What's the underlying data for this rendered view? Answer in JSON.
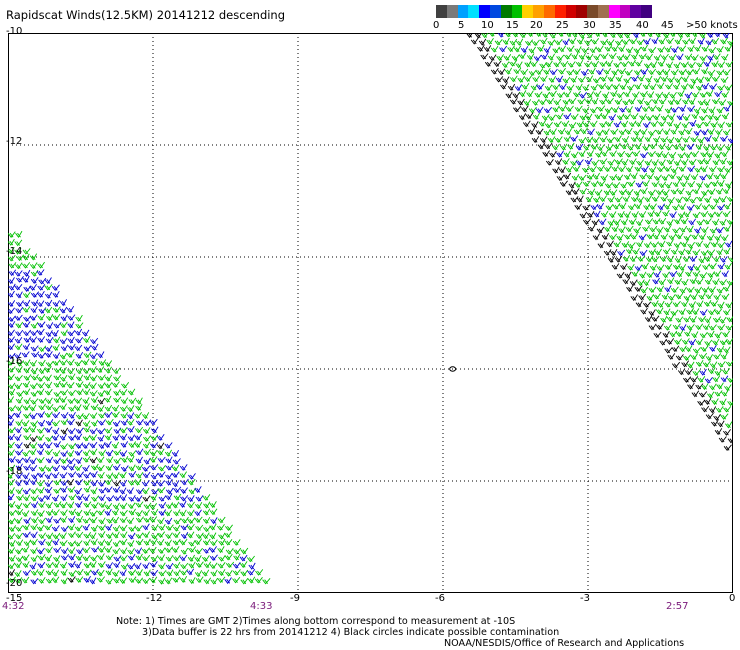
{
  "header": {
    "title": "Rapidscat Winds(12.5KM) 20141212 descending"
  },
  "colorbar": {
    "colors": [
      "#404040",
      "#7a7a7a",
      "#00a0ff",
      "#00e0ff",
      "#0000ff",
      "#0048e0",
      "#007a00",
      "#00c000",
      "#ffd000",
      "#ffa000",
      "#ff6a00",
      "#ff2000",
      "#d00000",
      "#a00000",
      "#7a4a2a",
      "#a07050",
      "#ff00ff",
      "#c000c0",
      "#6000a0",
      "#400080"
    ],
    "labels": [
      "0",
      "5",
      "10",
      "15",
      "20",
      "25",
      "30",
      "35",
      "40",
      "45",
      ">50 knots"
    ]
  },
  "chart_data": {
    "type": "scatter",
    "title": "Rapidscat Winds(12.5KM) 20141212 descending",
    "xlim": [
      -15,
      0
    ],
    "ylim": [
      -20,
      -10
    ],
    "x_ticks": [
      "-15",
      "-12",
      "-9",
      "-6",
      "-3",
      "0"
    ],
    "y_ticks": [
      "-10",
      "-12",
      "-14",
      "-16",
      "-18",
      "-20"
    ],
    "grid": true,
    "pass_times": [
      "4:32",
      "4:33",
      "2:57"
    ],
    "swaths": [
      {
        "name": "",
        "region": "lower-left",
        "dominant_speed_knots": "10-20",
        "colors": [
          "green",
          "blue"
        ]
      },
      {
        "name": "",
        "region": "upper-right",
        "dominant_speed_knots": "15-20",
        "colors": [
          "green",
          "blue",
          "black"
        ]
      }
    ],
    "contamination_circles": [
      {
        "x": -5.8,
        "y": -16.0
      }
    ]
  },
  "notes": {
    "line1": "Note: 1) Times are GMT 2)Times along bottom correspond to measurement at -10S",
    "line2": "3)Data buffer is 22 hrs from 20141212 4) Black circles indicate possible contamination",
    "line3": "NOAA/NESDIS/Office of Research and Applications"
  }
}
